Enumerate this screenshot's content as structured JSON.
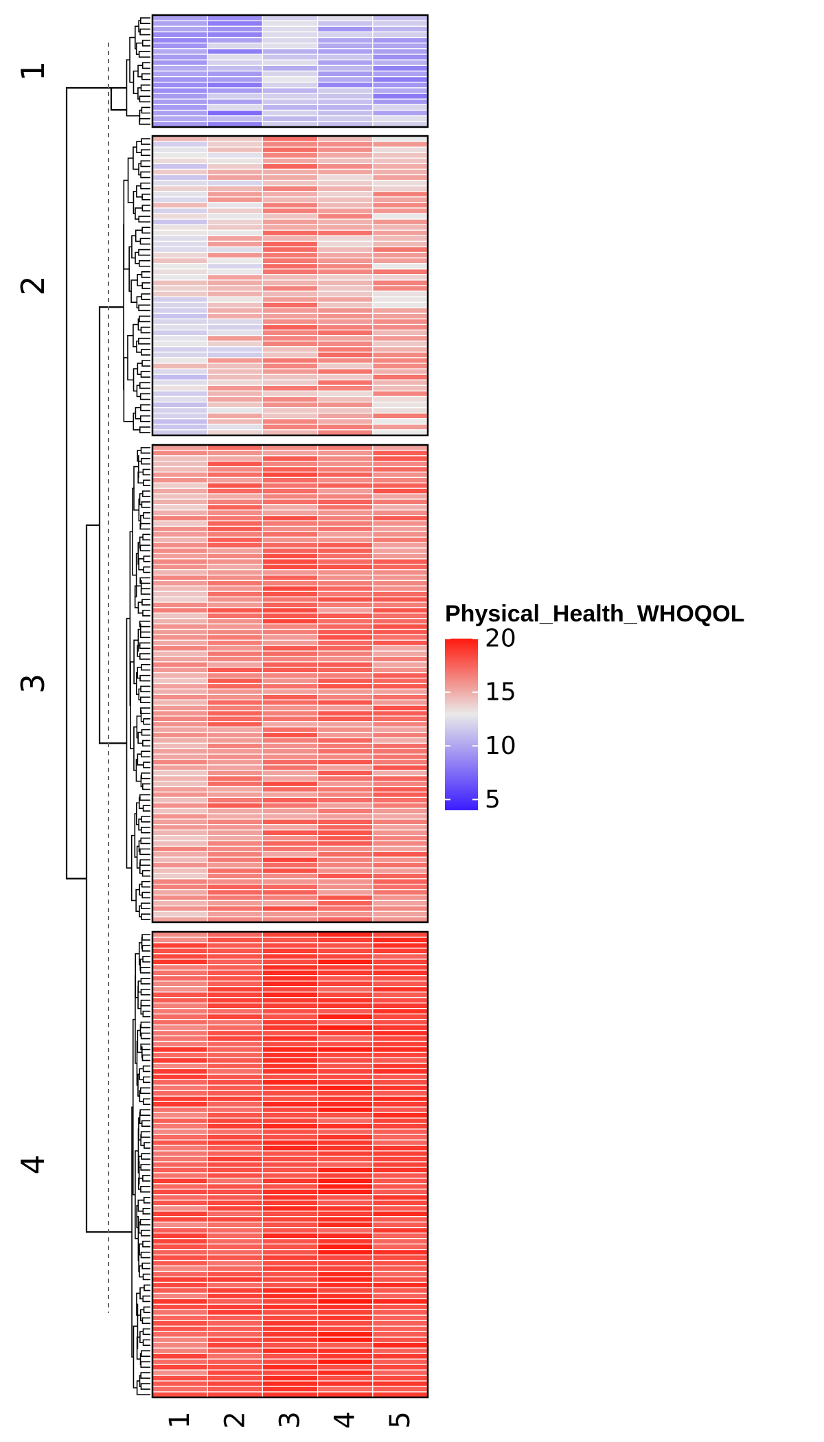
{
  "chart_data": {
    "type": "heatmap",
    "title": "",
    "xlabel": "",
    "ylabel": "",
    "columns": [
      "1",
      "2",
      "3",
      "4",
      "5"
    ],
    "color_scale": {
      "low": "#3b1cff",
      "mid": "#e9e9e9",
      "high": "#ff1a0e",
      "range": [
        4,
        20
      ],
      "midpoint": 13
    },
    "legend": {
      "title": "Physical_Health_WHOQOL",
      "ticks": [
        "20",
        "15",
        "10",
        "5"
      ],
      "tick_values": [
        20,
        15,
        10,
        5
      ],
      "position": "right"
    },
    "dendrogram": "rows",
    "cut_line": "dashed",
    "row_slices": [
      {
        "label": "1",
        "row_count": 20,
        "column_means": [
          9.5,
          10.0,
          11.5,
          10.5,
          10.3
        ],
        "column_ranges": [
          [
            7.5,
            11.5
          ],
          [
            5.0,
            14.5
          ],
          [
            9.0,
            14.5
          ],
          [
            7.5,
            14.5
          ],
          [
            6.5,
            14.5
          ]
        ]
      },
      {
        "label": "2",
        "row_count": 54,
        "column_means": [
          12.8,
          13.8,
          15.7,
          15.4,
          15.0
        ],
        "column_ranges": [
          [
            8.5,
            15.5
          ],
          [
            9.0,
            16.5
          ],
          [
            11.0,
            18.0
          ],
          [
            10.5,
            17.5
          ],
          [
            9.5,
            17.0
          ]
        ]
      },
      {
        "label": "3",
        "row_count": 88,
        "column_means": [
          15.3,
          16.6,
          16.9,
          16.8,
          16.6
        ],
        "column_ranges": [
          [
            12.5,
            17.5
          ],
          [
            13.5,
            19.0
          ],
          [
            13.0,
            19.5
          ],
          [
            13.5,
            18.5
          ],
          [
            13.0,
            19.0
          ]
        ]
      },
      {
        "label": "4",
        "row_count": 85,
        "column_means": [
          17.6,
          17.9,
          18.8,
          18.6,
          18.5
        ],
        "column_ranges": [
          [
            13.0,
            19.0
          ],
          [
            16.0,
            19.5
          ],
          [
            17.0,
            20.0
          ],
          [
            15.0,
            20.0
          ],
          [
            16.0,
            20.0
          ]
        ]
      }
    ]
  }
}
